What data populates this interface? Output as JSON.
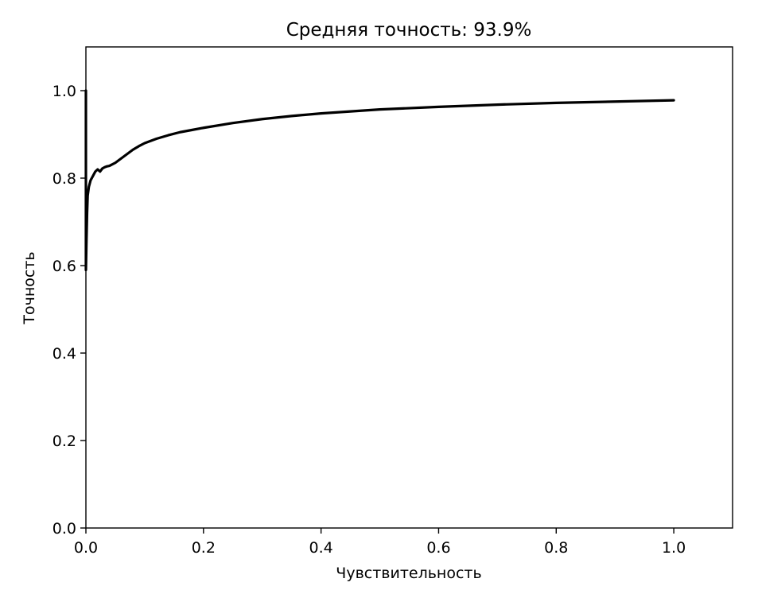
{
  "chart_data": {
    "type": "line",
    "title": "Средняя точность: 93.9%",
    "xlabel": "Чувствительность",
    "ylabel": "Точность",
    "xlim": [
      0.0,
      1.1
    ],
    "ylim": [
      0.0,
      1.1
    ],
    "xticks": [
      0.0,
      0.2,
      0.4,
      0.6,
      0.8,
      1.0
    ],
    "xtick_labels": [
      "0.0",
      "0.2",
      "0.4",
      "0.6",
      "0.8",
      "1.0"
    ],
    "yticks": [
      0.0,
      0.2,
      0.4,
      0.6,
      0.8,
      1.0
    ],
    "ytick_labels": [
      "0.0",
      "0.2",
      "0.4",
      "0.6",
      "0.8",
      "1.0"
    ],
    "grid": false,
    "line_color": "#000000",
    "series": [
      {
        "x": [
          0.0,
          0.0,
          0.001,
          0.002,
          0.003,
          0.005,
          0.008,
          0.012,
          0.016,
          0.02,
          0.024,
          0.028,
          0.032,
          0.036,
          0.04,
          0.05,
          0.06,
          0.07,
          0.08,
          0.09,
          0.1,
          0.12,
          0.14,
          0.16,
          0.18,
          0.2,
          0.25,
          0.3,
          0.35,
          0.4,
          0.5,
          0.6,
          0.7,
          0.8,
          0.9,
          1.0
        ],
        "y": [
          1.0,
          0.59,
          0.66,
          0.72,
          0.76,
          0.78,
          0.795,
          0.805,
          0.815,
          0.82,
          0.815,
          0.822,
          0.825,
          0.827,
          0.828,
          0.835,
          0.845,
          0.855,
          0.865,
          0.873,
          0.88,
          0.89,
          0.898,
          0.905,
          0.91,
          0.915,
          0.926,
          0.935,
          0.942,
          0.948,
          0.957,
          0.963,
          0.968,
          0.972,
          0.975,
          0.978
        ]
      }
    ]
  }
}
